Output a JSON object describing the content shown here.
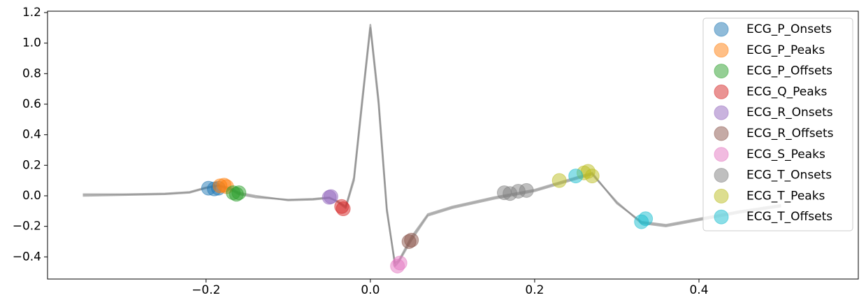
{
  "chart_data": {
    "type": "scatter",
    "xlim": [
      -0.393,
      0.594
    ],
    "ylim": [
      -0.545,
      1.209
    ],
    "xticks": [
      {
        "value": -0.2,
        "label": "−0.2"
      },
      {
        "value": 0,
        "label": "0.0"
      },
      0.2,
      0.4
    ],
    "yticks": [
      {
        "value": -0.4,
        "label": "−0.4"
      },
      {
        "value": -0.2,
        "label": "−0.2"
      },
      {
        "value": 0,
        "label": "0.0"
      },
      0.2,
      0.4,
      0.6,
      0.8,
      {
        "value": 1,
        "label": "1.0"
      },
      1.2
    ],
    "legend": "upper right",
    "line_color": "#808080",
    "lines": [
      {
        "x": [
          -0.35,
          -0.3,
          -0.25,
          -0.22,
          -0.2,
          -0.185,
          -0.17,
          -0.16,
          -0.14,
          -0.1,
          -0.07,
          -0.05,
          -0.04,
          -0.03,
          -0.02,
          -0.01,
          0.0,
          0.01,
          0.02,
          0.03,
          0.035,
          0.05,
          0.07,
          0.1,
          0.15,
          0.2,
          0.25,
          0.27,
          0.3,
          0.33,
          0.36,
          0.4,
          0.45,
          0.5
        ],
        "y": [
          0.0,
          0.005,
          0.01,
          0.02,
          0.05,
          0.065,
          0.04,
          0.01,
          -0.01,
          -0.025,
          -0.02,
          -0.01,
          -0.04,
          -0.08,
          0.1,
          0.6,
          1.1,
          0.6,
          -0.1,
          -0.44,
          -0.42,
          -0.27,
          -0.12,
          -0.07,
          -0.01,
          0.04,
          0.12,
          0.15,
          -0.05,
          -0.17,
          -0.19,
          -0.15,
          -0.1,
          -0.06
        ]
      },
      {
        "x": [
          -0.35,
          -0.3,
          -0.25,
          -0.22,
          -0.2,
          -0.185,
          -0.17,
          -0.16,
          -0.14,
          -0.1,
          -0.07,
          -0.05,
          -0.04,
          -0.03,
          -0.02,
          -0.01,
          0.0,
          0.01,
          0.02,
          0.03,
          0.035,
          0.05,
          0.07,
          0.1,
          0.15,
          0.2,
          0.25,
          0.27,
          0.3,
          0.33,
          0.36,
          0.4,
          0.45,
          0.5
        ],
        "y": [
          0.01,
          0.01,
          0.015,
          0.025,
          0.055,
          0.07,
          0.05,
          0.02,
          0.0,
          -0.03,
          -0.025,
          -0.015,
          -0.035,
          -0.07,
          0.12,
          0.63,
          1.12,
          0.63,
          -0.08,
          -0.46,
          -0.43,
          -0.29,
          -0.13,
          -0.08,
          -0.02,
          0.03,
          0.11,
          0.14,
          -0.04,
          -0.18,
          -0.2,
          -0.16,
          -0.11,
          -0.07
        ]
      }
    ],
    "series": [
      {
        "name": "ECG_P_Onsets",
        "color": "#1f77b4",
        "x": [
          -0.197,
          -0.19,
          -0.185
        ],
        "y": [
          0.05,
          0.045,
          0.05
        ]
      },
      {
        "name": "ECG_P_Peaks",
        "color": "#ff7f0e",
        "x": [
          -0.183,
          -0.178,
          -0.175
        ],
        "y": [
          0.065,
          0.07,
          0.06
        ]
      },
      {
        "name": "ECG_P_Offsets",
        "color": "#2ca02c",
        "x": [
          -0.167,
          -0.163,
          -0.16
        ],
        "y": [
          0.02,
          0.01,
          0.02
        ]
      },
      {
        "name": "ECG_Q_Peaks",
        "color": "#d62728",
        "x": [
          -0.035,
          -0.033
        ],
        "y": [
          -0.07,
          -0.085
        ]
      },
      {
        "name": "ECG_R_Onsets",
        "color": "#9467bd",
        "x": [
          -0.05,
          -0.048
        ],
        "y": [
          -0.01,
          -0.005
        ]
      },
      {
        "name": "ECG_R_Offsets",
        "color": "#8c564b",
        "x": [
          0.047,
          0.05
        ],
        "y": [
          -0.3,
          -0.29
        ]
      },
      {
        "name": "ECG_S_Peaks",
        "color": "#e377c2",
        "x": [
          0.033,
          0.036
        ],
        "y": [
          -0.46,
          -0.44
        ]
      },
      {
        "name": "ECG_T_Onsets",
        "color": "#7f7f7f",
        "x": [
          0.163,
          0.17,
          0.18,
          0.19
        ],
        "y": [
          0.02,
          0.015,
          0.03,
          0.035
        ]
      },
      {
        "name": "ECG_T_Peaks",
        "color": "#bcbd22",
        "x": [
          0.23,
          0.26,
          0.265,
          0.27
        ],
        "y": [
          0.1,
          0.15,
          0.16,
          0.13
        ]
      },
      {
        "name": "ECG_T_Offsets",
        "color": "#17becf",
        "x": [
          0.25,
          0.33,
          0.335
        ],
        "y": [
          0.13,
          -0.17,
          -0.15
        ]
      }
    ]
  }
}
